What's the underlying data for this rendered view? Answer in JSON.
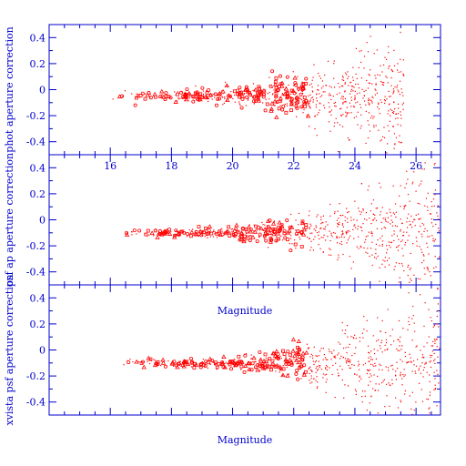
{
  "chart_data": [
    {
      "type": "scatter",
      "ylabel": "phot aperture correction",
      "xlabel": "",
      "xlim": [
        14,
        26.8
      ],
      "ylim": [
        -0.5,
        0.5
      ],
      "xticks": [
        16,
        18,
        20,
        22,
        24,
        26
      ],
      "yticks": [
        -0.4,
        -0.2,
        0,
        0.2,
        0.4
      ],
      "xtick_labels": [
        "16",
        "18",
        "20",
        "22",
        "24",
        "26"
      ],
      "ytick_labels": [
        "-0.4",
        "-0.2",
        "0",
        "0.2",
        "0.4"
      ],
      "marker_color": "#ff0000",
      "axis_color": "#0000cc",
      "trend": {
        "x_start": 16,
        "x_mid": 22.5,
        "x_end": 25.6,
        "y_center": -0.05,
        "scatter_start": 0.02,
        "scatter_end": 0.25
      }
    },
    {
      "type": "scatter",
      "ylabel": "psf ap aperture correction",
      "xlabel": "Magnitude",
      "xlim": [
        14,
        26.8
      ],
      "ylim": [
        -0.5,
        0.5
      ],
      "xticks": [
        16,
        18,
        20,
        22,
        24,
        26
      ],
      "yticks": [
        -0.4,
        -0.2,
        0,
        0.2,
        0.4
      ],
      "xtick_labels": [
        "16",
        "18",
        "20",
        "22",
        "24",
        "26"
      ],
      "ytick_labels": [
        "-0.4",
        "-0.2",
        "0",
        "0.2",
        "0.4"
      ],
      "marker_color": "#ff0000",
      "axis_color": "#0000cc",
      "trend": {
        "x_start": 16.1,
        "x_mid": 22.5,
        "x_end": 26.8,
        "y_center": -0.1,
        "scatter_start": 0.015,
        "scatter_end": 0.3
      }
    },
    {
      "type": "scatter",
      "ylabel": "xvista psf aperture correction",
      "xlabel": "Magnitude",
      "xlim": [
        14,
        26.8
      ],
      "ylim": [
        -0.5,
        0.5
      ],
      "xticks": [
        16,
        18,
        20,
        22,
        24,
        26
      ],
      "yticks": [
        -0.4,
        -0.2,
        0,
        0.2,
        0.4
      ],
      "xtick_labels": [],
      "ytick_labels": [
        "-0.4",
        "-0.2",
        "0",
        "0.2",
        "0.4"
      ],
      "marker_color": "#ff0000",
      "axis_color": "#0000cc",
      "trend": {
        "x_start": 16.1,
        "x_mid": 22.5,
        "x_end": 26.8,
        "y_center": -0.1,
        "scatter_start": 0.015,
        "scatter_end": 0.3
      }
    }
  ]
}
